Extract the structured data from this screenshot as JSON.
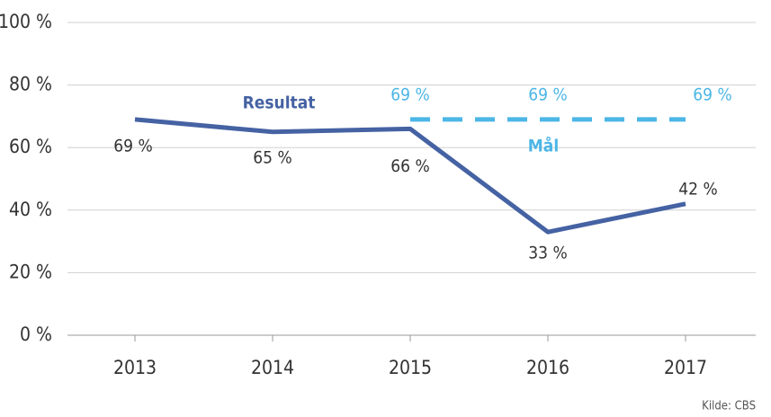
{
  "chart_data": {
    "type": "line",
    "categories": [
      "2013",
      "2014",
      "2015",
      "2016",
      "2017"
    ],
    "series": [
      {
        "name": "Resultat",
        "color": "#4562a3",
        "line_style": "solid",
        "values": [
          69,
          65,
          66,
          33,
          42
        ],
        "value_labels": [
          "69 %",
          "65 %",
          "66 %",
          "33 %",
          "42 %"
        ]
      },
      {
        "name": "Mål",
        "color": "#4cb6e6",
        "line_style": "dashed",
        "values": [
          null,
          null,
          69,
          69,
          69
        ],
        "value_labels": [
          null,
          null,
          "69 %",
          "69 %",
          "69 %"
        ]
      }
    ],
    "ylim": [
      0,
      100
    ],
    "yticks": [
      {
        "value": 0,
        "label": "0 %"
      },
      {
        "value": 20,
        "label": "20 %"
      },
      {
        "value": 40,
        "label": "40 %"
      },
      {
        "value": 60,
        "label": "60 %"
      },
      {
        "value": 80,
        "label": "80 %"
      },
      {
        "value": 100,
        "label": "100 %"
      }
    ],
    "grid": true,
    "source": "Kilde: CBS"
  }
}
